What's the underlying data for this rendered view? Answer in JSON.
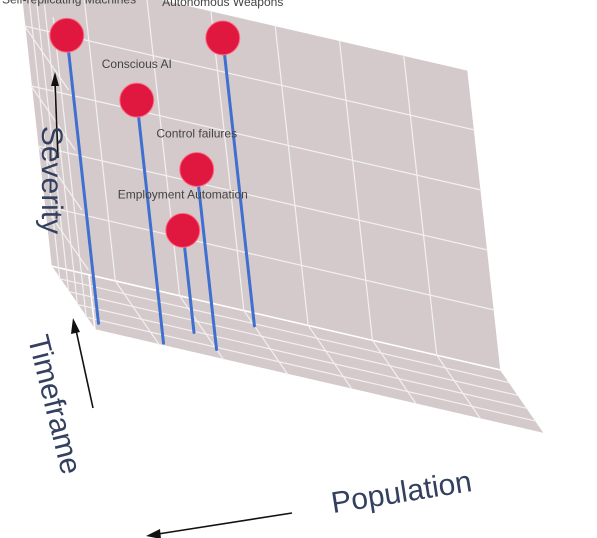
{
  "colors": {
    "pane": "#d4cacb",
    "grid": "#f2f0f0",
    "edge": "#ffffff",
    "stem": "#3f6fcf",
    "marker": "#e01840",
    "marker_edge": "#ff6f86",
    "axis_title": "#34405f",
    "arrow": "#111111"
  },
  "chart_data": {
    "type": "scatter",
    "title": "",
    "axes": {
      "x": {
        "label": "Population",
        "range": [
          0,
          7
        ]
      },
      "y": {
        "label": "Timeframe",
        "range": [
          0,
          10
        ]
      },
      "z": {
        "label": "Severity",
        "range": [
          0,
          10
        ]
      }
    },
    "grid": true,
    "tick_labels": false,
    "stems": true,
    "points": [
      {
        "label": "Self-replicating Machines",
        "population": 0.15,
        "timeframe": 1.4,
        "severity": 9.6
      },
      {
        "label": "Conscious AI",
        "population": 1.1,
        "timeframe": 0.5,
        "severity": 8.1
      },
      {
        "label": "Control failures",
        "population": 2.0,
        "timeframe": 1.6,
        "severity": 6.0
      },
      {
        "label": "Employment Automation",
        "population": 1.8,
        "timeframe": 3.8,
        "severity": 3.4
      },
      {
        "label": "Autonomous Weapons",
        "population": 3.0,
        "timeframe": 7.6,
        "severity": 9.6
      }
    ]
  }
}
